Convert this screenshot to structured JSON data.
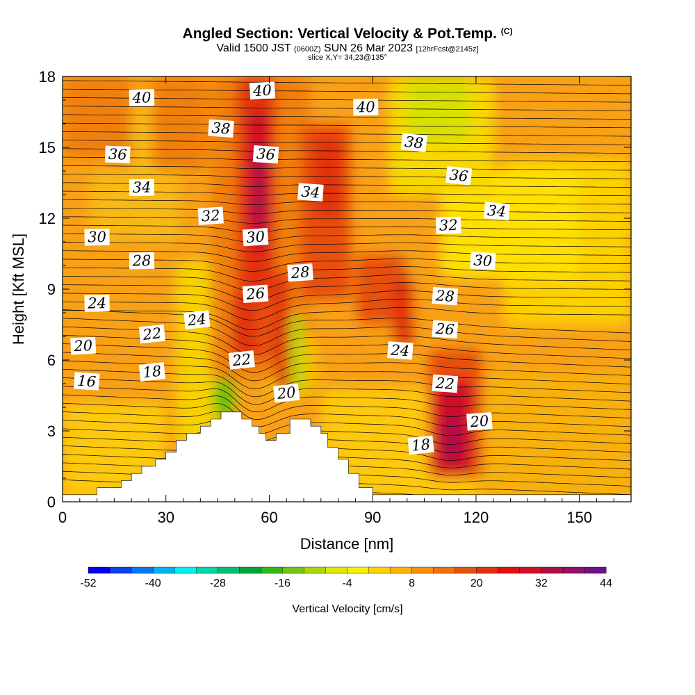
{
  "title": {
    "main": "Angled Section: Vertical Velocity & Pot.Temp.",
    "mark": "(C)",
    "valid_a": "Valid 1500 JST",
    "valid_b": "(0600Z)",
    "valid_c": "SUN 26 Mar 2023",
    "valid_d": "[12hrFcst@2145z]",
    "slice": "slice X,Y= 34,23@135°"
  },
  "chart_data": {
    "type": "heatmap",
    "xlabel": "Distance [nm]",
    "ylabel": "Height [Kft MSL]",
    "xlim": [
      0,
      165
    ],
    "ylim": [
      0,
      18
    ],
    "x_ticks": [
      0,
      30,
      60,
      90,
      120,
      150
    ],
    "y_ticks": [
      0,
      3,
      6,
      9,
      12,
      15,
      18
    ],
    "colorbar": {
      "label": "Vertical Velocity [cm/s]",
      "tick_labels": [
        "-52",
        "-40",
        "-28",
        "-16",
        "-4",
        "8",
        "20",
        "32",
        "44"
      ],
      "min": -52,
      "max": 44,
      "step": 4,
      "colors": [
        "#0000f0",
        "#0a40f0",
        "#0a78f0",
        "#00b4f0",
        "#00f0f0",
        "#00d8a8",
        "#00c070",
        "#00a838",
        "#30b818",
        "#70c810",
        "#a8d808",
        "#e0e800",
        "#f8f000",
        "#ffd000",
        "#ffb000",
        "#f89010",
        "#f07010",
        "#e85010",
        "#e03010",
        "#e01010",
        "#d01028",
        "#b01048",
        "#901068",
        "#701088"
      ]
    },
    "terrain": [
      [
        0,
        0.3
      ],
      [
        10,
        0.3
      ],
      [
        10,
        0.6
      ],
      [
        17,
        0.6
      ],
      [
        17,
        0.9
      ],
      [
        20,
        0.9
      ],
      [
        20,
        1.2
      ],
      [
        23,
        1.2
      ],
      [
        23,
        1.5
      ],
      [
        27,
        1.5
      ],
      [
        27,
        1.8
      ],
      [
        30,
        1.8
      ],
      [
        30,
        2.1
      ],
      [
        33,
        2.1
      ],
      [
        33,
        2.6
      ],
      [
        36,
        2.6
      ],
      [
        36,
        2.9
      ],
      [
        40,
        2.9
      ],
      [
        40,
        3.2
      ],
      [
        43,
        3.2
      ],
      [
        43,
        3.5
      ],
      [
        46,
        3.5
      ],
      [
        46,
        3.8
      ],
      [
        52,
        3.8
      ],
      [
        52,
        3.5
      ],
      [
        55,
        3.5
      ],
      [
        55,
        3.2
      ],
      [
        57,
        3.2
      ],
      [
        57,
        2.9
      ],
      [
        59,
        2.9
      ],
      [
        59,
        2.6
      ],
      [
        62,
        2.6
      ],
      [
        62,
        2.9
      ],
      [
        66,
        2.9
      ],
      [
        66,
        3.5
      ],
      [
        72,
        3.5
      ],
      [
        72,
        3.2
      ],
      [
        75,
        3.2
      ],
      [
        75,
        2.9
      ],
      [
        77,
        2.9
      ],
      [
        77,
        2.3
      ],
      [
        80,
        2.3
      ],
      [
        80,
        1.8
      ],
      [
        83,
        1.8
      ],
      [
        83,
        1.2
      ],
      [
        86,
        1.2
      ],
      [
        86,
        0.6
      ],
      [
        90,
        0.6
      ],
      [
        90,
        0.3
      ],
      [
        165,
        0.3
      ]
    ],
    "theta_labels": [
      {
        "text": "40",
        "x": 23,
        "y": 17.1
      },
      {
        "text": "38",
        "x": 46,
        "y": 15.8
      },
      {
        "text": "36",
        "x": 16,
        "y": 14.7
      },
      {
        "text": "34",
        "x": 23,
        "y": 13.3
      },
      {
        "text": "32",
        "x": 43,
        "y": 12.1
      },
      {
        "text": "30",
        "x": 10,
        "y": 11.2
      },
      {
        "text": "28",
        "x": 23,
        "y": 10.2
      },
      {
        "text": "24",
        "x": 10,
        "y": 8.4
      },
      {
        "text": "22",
        "x": 26,
        "y": 7.1
      },
      {
        "text": "20",
        "x": 6,
        "y": 6.6
      },
      {
        "text": "18",
        "x": 26,
        "y": 5.5
      },
      {
        "text": "16",
        "x": 7,
        "y": 5.1
      },
      {
        "text": "24",
        "x": 39,
        "y": 7.7
      },
      {
        "text": "26",
        "x": 56,
        "y": 8.8
      },
      {
        "text": "22",
        "x": 52,
        "y": 6.0
      },
      {
        "text": "30",
        "x": 56,
        "y": 11.2
      },
      {
        "text": "36",
        "x": 59,
        "y": 14.7
      },
      {
        "text": "40",
        "x": 58,
        "y": 17.4
      },
      {
        "text": "34",
        "x": 72,
        "y": 13.1
      },
      {
        "text": "28",
        "x": 69,
        "y": 9.7
      },
      {
        "text": "20",
        "x": 65,
        "y": 4.6
      },
      {
        "text": "40",
        "x": 88,
        "y": 16.7
      },
      {
        "text": "38",
        "x": 102,
        "y": 15.2
      },
      {
        "text": "36",
        "x": 115,
        "y": 13.8
      },
      {
        "text": "34",
        "x": 126,
        "y": 12.3
      },
      {
        "text": "32",
        "x": 112,
        "y": 11.7
      },
      {
        "text": "30",
        "x": 122,
        "y": 10.2
      },
      {
        "text": "28",
        "x": 111,
        "y": 8.7
      },
      {
        "text": "26",
        "x": 111,
        "y": 7.3
      },
      {
        "text": "24",
        "x": 98,
        "y": 6.4
      },
      {
        "text": "22",
        "x": 111,
        "y": 5.0
      },
      {
        "text": "20",
        "x": 121,
        "y": 3.4
      },
      {
        "text": "18",
        "x": 104,
        "y": 2.4
      }
    ]
  }
}
